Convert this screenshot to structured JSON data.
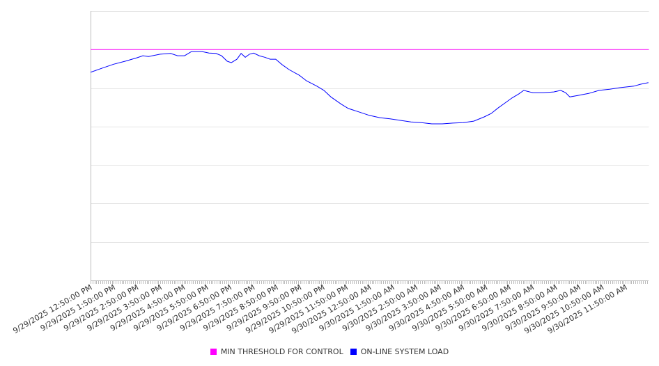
{
  "chart_data": {
    "type": "line",
    "title": "",
    "xlabel": "",
    "ylabel": "",
    "x_unit": "hours since 9/29/2025 12:50:00 PM",
    "xlim": [
      0,
      24
    ],
    "ylim": [
      0,
      7
    ],
    "grid": true,
    "legend_position": "bottom",
    "x_tick_labels": [
      "9/29/2025 12:50:00 PM",
      "9/29/2025 1:50:00 PM",
      "9/29/2025 2:50:00 PM",
      "9/29/2025 3:50:00 PM",
      "9/29/2025 4:50:00 PM",
      "9/29/2025 5:50:00 PM",
      "9/29/2025 6:50:00 PM",
      "9/29/2025 7:50:00 PM",
      "9/29/2025 8:50:00 PM",
      "9/29/2025 9:50:00 PM",
      "9/29/2025 10:50:00 PM",
      "9/29/2025 11:50:00 PM",
      "9/30/2025 12:50:00 AM",
      "9/30/2025 1:50:00 AM",
      "9/30/2025 2:50:00 AM",
      "9/30/2025 3:50:00 AM",
      "9/30/2025 4:50:00 AM",
      "9/30/2025 5:50:00 AM",
      "9/30/2025 6:50:00 AM",
      "9/30/2025 7:50:00 AM",
      "9/30/2025 8:50:00 AM",
      "9/30/2025 9:50:00 AM",
      "9/30/2025 10:50:00 AM",
      "9/30/2025 11:50:00 AM"
    ],
    "series": [
      {
        "name": "MIN THRESHOLD FOR CONTROL",
        "color": "#ff00ff",
        "x": [
          0,
          24
        ],
        "values": [
          6.0,
          6.0
        ]
      },
      {
        "name": "ON-LINE SYSTEM LOAD",
        "color": "#0000ff",
        "x": [
          0,
          0.51,
          0.99,
          1.5,
          2.01,
          2.25,
          2.49,
          2.99,
          3.44,
          3.74,
          4.04,
          4.34,
          4.79,
          5.09,
          5.39,
          5.63,
          5.87,
          6.05,
          6.29,
          6.47,
          6.65,
          6.83,
          7.01,
          7.25,
          7.49,
          7.72,
          7.96,
          8.23,
          8.53,
          8.98,
          9.28,
          9.73,
          10.03,
          10.33,
          10.78,
          11.08,
          11.53,
          11.98,
          12.43,
          12.87,
          13.32,
          13.77,
          14.22,
          14.67,
          15.12,
          15.57,
          16.02,
          16.47,
          16.92,
          17.22,
          17.51,
          17.81,
          18.11,
          18.41,
          18.62,
          19.01,
          19.46,
          19.91,
          20.21,
          20.42,
          20.6,
          20.96,
          21.41,
          21.86,
          22.31,
          22.75,
          23.35,
          23.65,
          23.98
        ],
        "values": [
          5.41,
          5.52,
          5.62,
          5.7,
          5.79,
          5.84,
          5.82,
          5.88,
          5.9,
          5.84,
          5.84,
          5.95,
          5.95,
          5.91,
          5.9,
          5.84,
          5.7,
          5.66,
          5.75,
          5.9,
          5.8,
          5.88,
          5.91,
          5.84,
          5.8,
          5.75,
          5.75,
          5.61,
          5.48,
          5.33,
          5.19,
          5.05,
          4.94,
          4.77,
          4.58,
          4.47,
          4.38,
          4.29,
          4.23,
          4.2,
          4.16,
          4.12,
          4.1,
          4.07,
          4.07,
          4.09,
          4.1,
          4.14,
          4.25,
          4.34,
          4.48,
          4.61,
          4.74,
          4.85,
          4.94,
          4.88,
          4.88,
          4.9,
          4.94,
          4.88,
          4.77,
          4.81,
          4.86,
          4.94,
          4.97,
          5.01,
          5.05,
          5.1,
          5.14
        ]
      }
    ]
  }
}
